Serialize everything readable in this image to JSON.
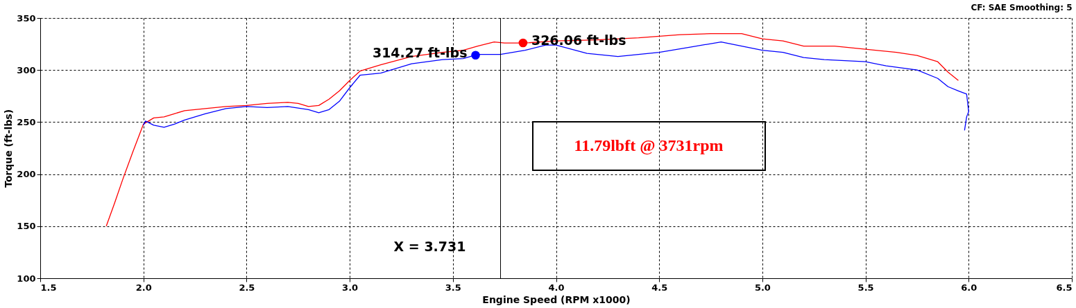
{
  "chart_data": {
    "type": "line",
    "xlabel": "Engine Speed (RPM x1000)",
    "ylabel": "Torque (ft-lbs)",
    "xlim": [
      1.5,
      6.5
    ],
    "xticks": [
      {
        "value": 1.5,
        "label": "1.5"
      },
      {
        "value": 2,
        "label": "2.0"
      },
      {
        "value": 2.5,
        "label": "2.5"
      },
      {
        "value": 3,
        "label": "3.0"
      },
      {
        "value": 3.5,
        "label": "3.5"
      },
      {
        "value": 4,
        "label": "4.0"
      },
      {
        "value": 4.5,
        "label": "4.5"
      },
      {
        "value": 5,
        "label": "5.0"
      },
      {
        "value": 5.5,
        "label": "5.5"
      },
      {
        "value": 6,
        "label": "6.0"
      },
      {
        "value": 6.5,
        "label": "6.5"
      }
    ],
    "ylim": [
      100,
      350
    ],
    "yticks": [
      100,
      150,
      200,
      250,
      300,
      350
    ],
    "grid": true,
    "legend": false,
    "marker": "none",
    "line_style": "solid",
    "series": [
      {
        "color": "#ff0000",
        "x": [
          1.82,
          1.86,
          1.9,
          1.95,
          2.0,
          2.05,
          2.1,
          2.15,
          2.2,
          2.3,
          2.4,
          2.5,
          2.6,
          2.7,
          2.75,
          2.8,
          2.85,
          2.9,
          2.95,
          3.0,
          3.05,
          3.15,
          3.3,
          3.45,
          3.55,
          3.62,
          3.7,
          3.75,
          3.85,
          4.0,
          4.2,
          4.4,
          4.6,
          4.75,
          4.9,
          5.0,
          5.1,
          5.2,
          5.35,
          5.5,
          5.65,
          5.75,
          5.85,
          5.9,
          5.95
        ],
        "values": [
          150,
          172,
          195,
          222,
          248,
          254,
          255,
          258,
          261,
          263,
          265,
          266,
          268,
          269,
          268,
          265,
          266,
          272,
          280,
          290,
          299,
          305,
          313,
          317,
          319,
          323,
          327,
          326,
          326,
          328,
          329,
          331,
          334,
          335,
          335,
          330,
          328,
          323,
          323,
          320,
          317,
          314,
          308,
          298,
          290
        ]
      },
      {
        "color": "#0000ff",
        "x": [
          2.0,
          2.01,
          2.05,
          2.1,
          2.15,
          2.2,
          2.3,
          2.4,
          2.5,
          2.6,
          2.7,
          2.8,
          2.85,
          2.9,
          2.95,
          3.0,
          3.05,
          3.15,
          3.3,
          3.45,
          3.55,
          3.62,
          3.73,
          3.85,
          3.95,
          4.0,
          4.15,
          4.3,
          4.5,
          4.65,
          4.8,
          4.9,
          5.0,
          5.1,
          5.2,
          5.3,
          5.5,
          5.6,
          5.75,
          5.85,
          5.9,
          5.95,
          5.99,
          6.0,
          5.99,
          5.98
        ],
        "values": [
          247,
          251,
          247,
          245,
          248,
          252,
          258,
          263,
          265,
          264,
          265,
          262,
          259,
          262,
          270,
          283,
          295,
          297,
          306,
          310,
          311,
          315,
          315,
          319,
          324,
          324,
          316,
          313,
          317,
          322,
          327,
          323,
          319,
          317,
          312,
          310,
          308,
          304,
          300,
          292,
          284,
          280,
          277,
          260,
          255,
          242
        ]
      }
    ],
    "ref_lines": [
      {
        "axis": "x",
        "value": 3.731,
        "label": "X = 3.731",
        "color": "#000000",
        "line_style": "solid"
      }
    ],
    "annotations": [
      {
        "text": "314.27 ft-lbs",
        "x": 3.61,
        "y": 314.27
      },
      {
        "text": "326.06 ft-lbs",
        "x": 3.84,
        "y": 326.06
      },
      "CF: SAE  Smoothing: 5",
      "11.79lbft @ 3731rpm"
    ]
  }
}
